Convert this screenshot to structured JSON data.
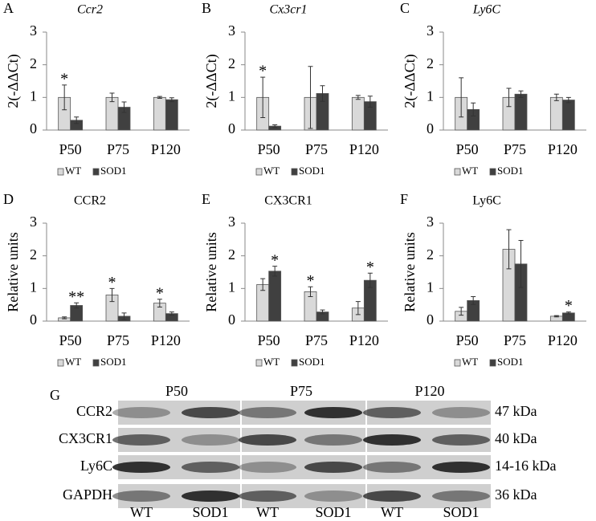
{
  "chart_data": [
    {
      "type": "bar",
      "panel": "A",
      "title": "Ccr2",
      "italic_title": true,
      "ylabel": "2(-ΔΔCt)",
      "categories": [
        "P50",
        "P75",
        "P120"
      ],
      "series": [
        {
          "name": "WT",
          "color": "#d9d9d9",
          "values": [
            1.0,
            1.0,
            1.0
          ],
          "errors": [
            0.38,
            0.13,
            0.03
          ]
        },
        {
          "name": "SOD1",
          "color": "#404040",
          "values": [
            0.3,
            0.7,
            0.93
          ],
          "errors": [
            0.1,
            0.16,
            0.06
          ]
        }
      ],
      "significance": [
        "*",
        null,
        null
      ],
      "ylim": [
        0,
        3
      ],
      "yticks": [
        0,
        1,
        2,
        3
      ],
      "legend": "bottom"
    },
    {
      "type": "bar",
      "panel": "B",
      "title": "Cx3cr1",
      "italic_title": true,
      "ylabel": "2(-ΔΔCt)",
      "categories": [
        "P50",
        "P75",
        "P120"
      ],
      "series": [
        {
          "name": "WT",
          "color": "#d9d9d9",
          "values": [
            1.0,
            1.0,
            1.0
          ],
          "errors": [
            0.62,
            0.95,
            0.06
          ]
        },
        {
          "name": "SOD1",
          "color": "#404040",
          "values": [
            0.12,
            1.12,
            0.87
          ],
          "errors": [
            0.04,
            0.24,
            0.17
          ]
        }
      ],
      "significance": [
        "*",
        null,
        null
      ],
      "ylim": [
        0,
        3
      ],
      "yticks": [
        0,
        1,
        2,
        3
      ],
      "legend": "bottom"
    },
    {
      "type": "bar",
      "panel": "C",
      "title": "Ly6C",
      "italic_title": true,
      "ylabel": "2(-ΔΔCt)",
      "categories": [
        "P50",
        "P75",
        "P120"
      ],
      "series": [
        {
          "name": "WT",
          "color": "#d9d9d9",
          "values": [
            1.0,
            1.0,
            1.0
          ],
          "errors": [
            0.6,
            0.28,
            0.1
          ]
        },
        {
          "name": "SOD1",
          "color": "#404040",
          "values": [
            0.63,
            1.1,
            0.92
          ],
          "errors": [
            0.2,
            0.1,
            0.08
          ]
        }
      ],
      "significance": [
        null,
        null,
        null
      ],
      "ylim": [
        0,
        3
      ],
      "yticks": [
        0,
        1,
        2,
        3
      ],
      "legend": "bottom"
    },
    {
      "type": "bar",
      "panel": "D",
      "title": "CCR2",
      "italic_title": false,
      "ylabel": "Relative units",
      "categories": [
        "P50",
        "P75",
        "P120"
      ],
      "series": [
        {
          "name": "WT",
          "color": "#d9d9d9",
          "values": [
            0.1,
            0.8,
            0.55
          ],
          "errors": [
            0.03,
            0.2,
            0.12
          ]
        },
        {
          "name": "SOD1",
          "color": "#404040",
          "values": [
            0.48,
            0.15,
            0.23
          ],
          "errors": [
            0.08,
            0.1,
            0.05
          ]
        }
      ],
      "significance": [
        "**",
        "*",
        "*"
      ],
      "ylim": [
        0,
        3
      ],
      "yticks": [
        0,
        1,
        2,
        3
      ],
      "legend": "bottom"
    },
    {
      "type": "bar",
      "panel": "E",
      "title": "CX3CR1",
      "italic_title": false,
      "ylabel": "Relative units",
      "categories": [
        "P50",
        "P75",
        "P120"
      ],
      "series": [
        {
          "name": "WT",
          "color": "#d9d9d9",
          "values": [
            1.12,
            0.9,
            0.4
          ],
          "errors": [
            0.18,
            0.15,
            0.2
          ]
        },
        {
          "name": "SOD1",
          "color": "#404040",
          "values": [
            1.53,
            0.28,
            1.25
          ],
          "errors": [
            0.15,
            0.06,
            0.22
          ]
        }
      ],
      "significance": [
        "*",
        "*",
        "*"
      ],
      "ylim": [
        0,
        3
      ],
      "yticks": [
        0,
        1,
        2,
        3
      ],
      "legend": "bottom"
    },
    {
      "type": "bar",
      "panel": "F",
      "title": "Ly6C",
      "italic_title": false,
      "ylabel": "Relative units",
      "categories": [
        "P50",
        "P75",
        "P120"
      ],
      "series": [
        {
          "name": "WT",
          "color": "#d9d9d9",
          "values": [
            0.3,
            2.2,
            0.15
          ],
          "errors": [
            0.12,
            0.6,
            0.02
          ]
        },
        {
          "name": "SOD1",
          "color": "#404040",
          "values": [
            0.63,
            1.75,
            0.25
          ],
          "errors": [
            0.12,
            0.72,
            0.03
          ]
        }
      ],
      "significance": [
        null,
        null,
        "*"
      ],
      "ylim": [
        0,
        3
      ],
      "yticks": [
        0,
        1,
        2,
        3
      ],
      "legend": "bottom"
    }
  ],
  "blot": {
    "panel": "G",
    "timepoints": [
      "P50",
      "P75",
      "P120"
    ],
    "proteins": [
      "CCR2",
      "CX3CR1",
      "Ly6C",
      "GAPDH"
    ],
    "sizes": [
      "47 kDa",
      "40 kDa",
      "14-16 kDa",
      "36 kDa"
    ],
    "lanes": [
      "WT",
      "SOD1",
      "WT",
      "SOD1",
      "WT",
      "SOD1"
    ]
  }
}
